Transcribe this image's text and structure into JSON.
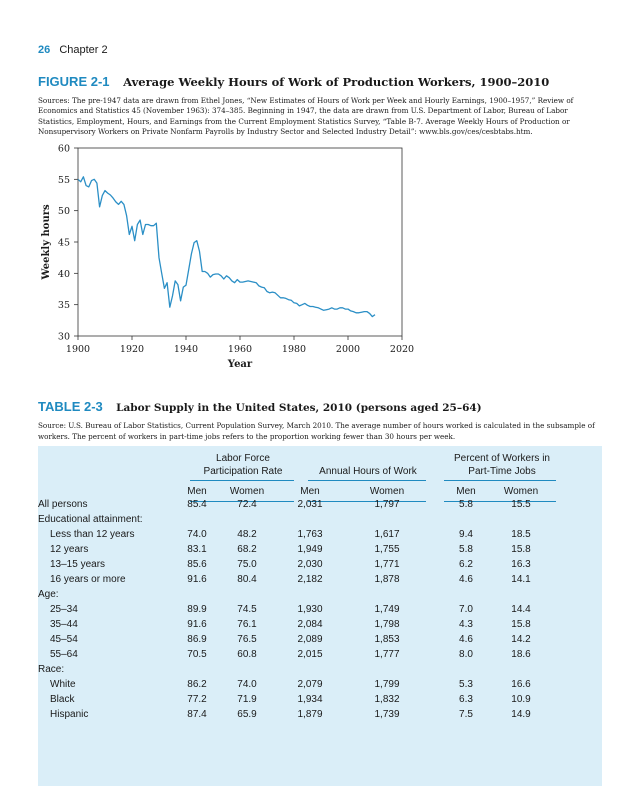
{
  "header": {
    "page_number": "26",
    "chapter": "Chapter 2"
  },
  "figure": {
    "label": "FIGURE 2-1",
    "title": "Average Weekly Hours of Work of Production Workers, 1900–2010",
    "sources": "Sources: The pre-1947 data are drawn from Ethel Jones, “New Estimates of Hours of Work per Week and Hourly Earnings, 1900–1957,” Review of Economics and Statistics 45 (November 1963): 374–385. Beginning in 1947, the data are drawn from U.S. Department of Labor, Bureau of Labor Statistics, Employment, Hours, and Earnings from the Current Employment Statistics Survey, “Table B-7. Average Weekly Hours of Production or Nonsupervisory Workers on Private Nonfarm Payrolls by Industry Sector and Selected Industry Detail”: www.bls.gov/ces/cesbtabs.htm."
  },
  "chart_data": {
    "type": "line",
    "xlabel": "Year",
    "ylabel": "Weekly hours",
    "xlim": [
      1900,
      2020
    ],
    "ylim": [
      30,
      60
    ],
    "xticks": [
      "1900",
      "1920",
      "1940",
      "1960",
      "1980",
      "2000",
      "2020"
    ],
    "yticks": [
      "30",
      "35",
      "40",
      "45",
      "50",
      "55",
      "60"
    ],
    "grid": false,
    "legend": "none",
    "line_color": "#2b8fc6",
    "series": [
      {
        "x": [
          1900,
          1901,
          1902,
          1903,
          1904,
          1905,
          1906,
          1907,
          1908,
          1909,
          1910,
          1911,
          1912,
          1913,
          1914,
          1915,
          1916,
          1917,
          1918,
          1919,
          1920,
          1921,
          1922,
          1923,
          1924,
          1925,
          1926,
          1927,
          1928,
          1929,
          1930,
          1931,
          1932,
          1933,
          1934,
          1935,
          1936,
          1937,
          1938,
          1939,
          1940,
          1941,
          1942,
          1943,
          1944,
          1945,
          1946,
          1947,
          1948,
          1949,
          1950,
          1951,
          1952,
          1953,
          1954,
          1955,
          1956,
          1957,
          1958,
          1959,
          1960,
          1961,
          1962,
          1963,
          1964,
          1965,
          1966,
          1967,
          1968,
          1969,
          1970,
          1971,
          1972,
          1973,
          1974,
          1975,
          1976,
          1977,
          1978,
          1979,
          1980,
          1981,
          1982,
          1983,
          1984,
          1985,
          1986,
          1987,
          1988,
          1989,
          1990,
          1991,
          1992,
          1993,
          1994,
          1995,
          1996,
          1997,
          1998,
          1999,
          2000,
          2001,
          2002,
          2003,
          2004,
          2005,
          2006,
          2007,
          2008,
          2009,
          2010
        ],
        "values": [
          55.0,
          54.6,
          55.4,
          54.0,
          53.8,
          54.8,
          55.0,
          54.4,
          50.6,
          52.4,
          53.2,
          52.8,
          52.5,
          52.0,
          51.4,
          51.0,
          51.5,
          51.0,
          49.2,
          46.2,
          47.5,
          45.2,
          47.8,
          48.5,
          46.2,
          47.8,
          47.8,
          47.6,
          47.6,
          48.0,
          42.5,
          40.0,
          37.6,
          38.5,
          34.6,
          36.4,
          38.8,
          38.2,
          35.6,
          37.8,
          38.1,
          40.6,
          43.1,
          44.9,
          45.2,
          43.5,
          40.3,
          40.3,
          40.0,
          39.4,
          39.8,
          39.9,
          39.9,
          39.6,
          39.1,
          39.6,
          39.3,
          38.8,
          38.5,
          39.0,
          38.6,
          38.6,
          38.7,
          38.8,
          38.7,
          38.6,
          38.5,
          38.0,
          37.8,
          37.7,
          37.1,
          36.9,
          37.0,
          36.9,
          36.5,
          36.1,
          36.1,
          36.0,
          35.8,
          35.7,
          35.3,
          35.2,
          34.8,
          35.0,
          35.2,
          34.9,
          34.7,
          34.7,
          34.6,
          34.5,
          34.3,
          34.1,
          34.2,
          34.3,
          34.5,
          34.3,
          34.3,
          34.5,
          34.5,
          34.3,
          34.3,
          34.0,
          33.9,
          33.7,
          33.7,
          33.8,
          33.9,
          33.9,
          33.6,
          33.1,
          33.4
        ]
      }
    ]
  },
  "table": {
    "label": "TABLE 2-3",
    "title": "Labor Supply in the United States, 2010 (persons aged 25–64)",
    "source": "Source: U.S. Bureau of Labor Statistics, Current Population Survey, March 2010. The average number of hours worked is calculated in the subsample of workers. The percent of workers in part-time jobs refers to the proportion working fewer than 30 hours per week.",
    "groups": {
      "lfpr_line1": "Labor Force",
      "lfpr_line2": "Participation Rate",
      "hours": "Annual Hours of Work",
      "pt_line1": "Percent of Workers in",
      "pt_line2": "Part-Time Jobs"
    },
    "col_men": "Men",
    "col_women": "Women",
    "rows": [
      {
        "label": "All persons",
        "indent": 0,
        "v": [
          "85.4",
          "72.4",
          "2,031",
          "1,797",
          "5.8",
          "15.5"
        ]
      },
      {
        "label": "Educational attainment:",
        "indent": 0,
        "v": [
          "",
          "",
          "",
          "",
          "",
          ""
        ]
      },
      {
        "label": "Less than 12 years",
        "indent": 1,
        "v": [
          "74.0",
          "48.2",
          "1,763",
          "1,617",
          "9.4",
          "18.5"
        ]
      },
      {
        "label": "12 years",
        "indent": 1,
        "v": [
          "83.1",
          "68.2",
          "1,949",
          "1,755",
          "5.8",
          "15.8"
        ]
      },
      {
        "label": "13–15 years",
        "indent": 1,
        "v": [
          "85.6",
          "75.0",
          "2,030",
          "1,771",
          "6.2",
          "16.3"
        ]
      },
      {
        "label": "16 years or more",
        "indent": 1,
        "v": [
          "91.6",
          "80.4",
          "2,182",
          "1,878",
          "4.6",
          "14.1"
        ]
      },
      {
        "label": "Age:",
        "indent": 0,
        "v": [
          "",
          "",
          "",
          "",
          "",
          ""
        ]
      },
      {
        "label": "25–34",
        "indent": 1,
        "v": [
          "89.9",
          "74.5",
          "1,930",
          "1,749",
          "7.0",
          "14.4"
        ]
      },
      {
        "label": "35–44",
        "indent": 1,
        "v": [
          "91.6",
          "76.1",
          "2,084",
          "1,798",
          "4.3",
          "15.8"
        ]
      },
      {
        "label": "45–54",
        "indent": 1,
        "v": [
          "86.9",
          "76.5",
          "2,089",
          "1,853",
          "4.6",
          "14.2"
        ]
      },
      {
        "label": "55–64",
        "indent": 1,
        "v": [
          "70.5",
          "60.8",
          "2,015",
          "1,777",
          "8.0",
          "18.6"
        ]
      },
      {
        "label": "Race:",
        "indent": 0,
        "v": [
          "",
          "",
          "",
          "",
          "",
          ""
        ]
      },
      {
        "label": "White",
        "indent": 1,
        "v": [
          "86.2",
          "74.0",
          "2,079",
          "1,799",
          "5.3",
          "16.6"
        ]
      },
      {
        "label": "Black",
        "indent": 1,
        "v": [
          "77.2",
          "71.9",
          "1,934",
          "1,832",
          "6.3",
          "10.9"
        ]
      },
      {
        "label": "Hispanic",
        "indent": 1,
        "v": [
          "87.4",
          "65.9",
          "1,879",
          "1,739",
          "7.5",
          "14.9"
        ]
      }
    ]
  }
}
